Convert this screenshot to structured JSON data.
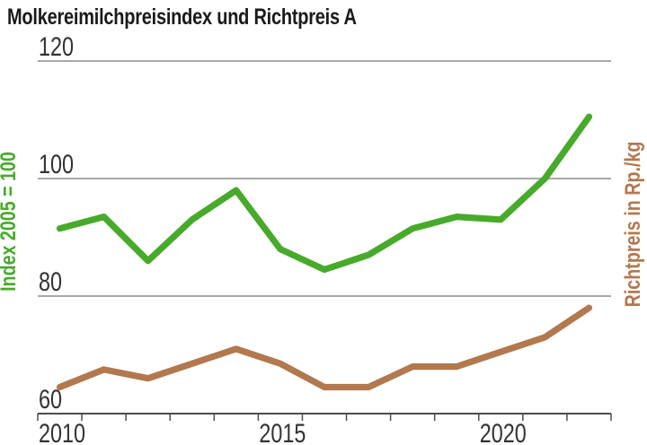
{
  "chart_data": {
    "type": "line",
    "title": "Molkereimilchpreisindex und Richtpreis A",
    "x": [
      2010,
      2011,
      2012,
      2013,
      2014,
      2015,
      2016,
      2017,
      2018,
      2019,
      2020,
      2021,
      2022
    ],
    "series": [
      {
        "name": "Molkereimilchpreisindex",
        "axis_label": "Index 2005 = 100",
        "axis_side": "left",
        "color": "#47aa2b",
        "values": [
          91.5,
          93.5,
          86,
          93,
          98,
          88,
          84.5,
          87,
          91.5,
          93.5,
          93,
          100,
          110.5
        ]
      },
      {
        "name": "Richtpreis A",
        "axis_label": "Richtpreis in Rp./kg",
        "axis_side": "right",
        "color": "#b2784e",
        "values": [
          64.5,
          67.5,
          66,
          68.5,
          71,
          68.5,
          64.5,
          64.5,
          68,
          68,
          70.5,
          73,
          78
        ]
      }
    ],
    "ylim": [
      60,
      120
    ],
    "yticks": [
      60,
      80,
      100,
      120
    ],
    "xtick_labels": [
      2010,
      2015,
      2020
    ],
    "grid": "horizontal",
    "legend": "none"
  },
  "colors": {
    "grid": "#8c8c8c",
    "axis": "#4c4c4c",
    "tick_label": "#333333",
    "title": "#1a1a1a"
  }
}
